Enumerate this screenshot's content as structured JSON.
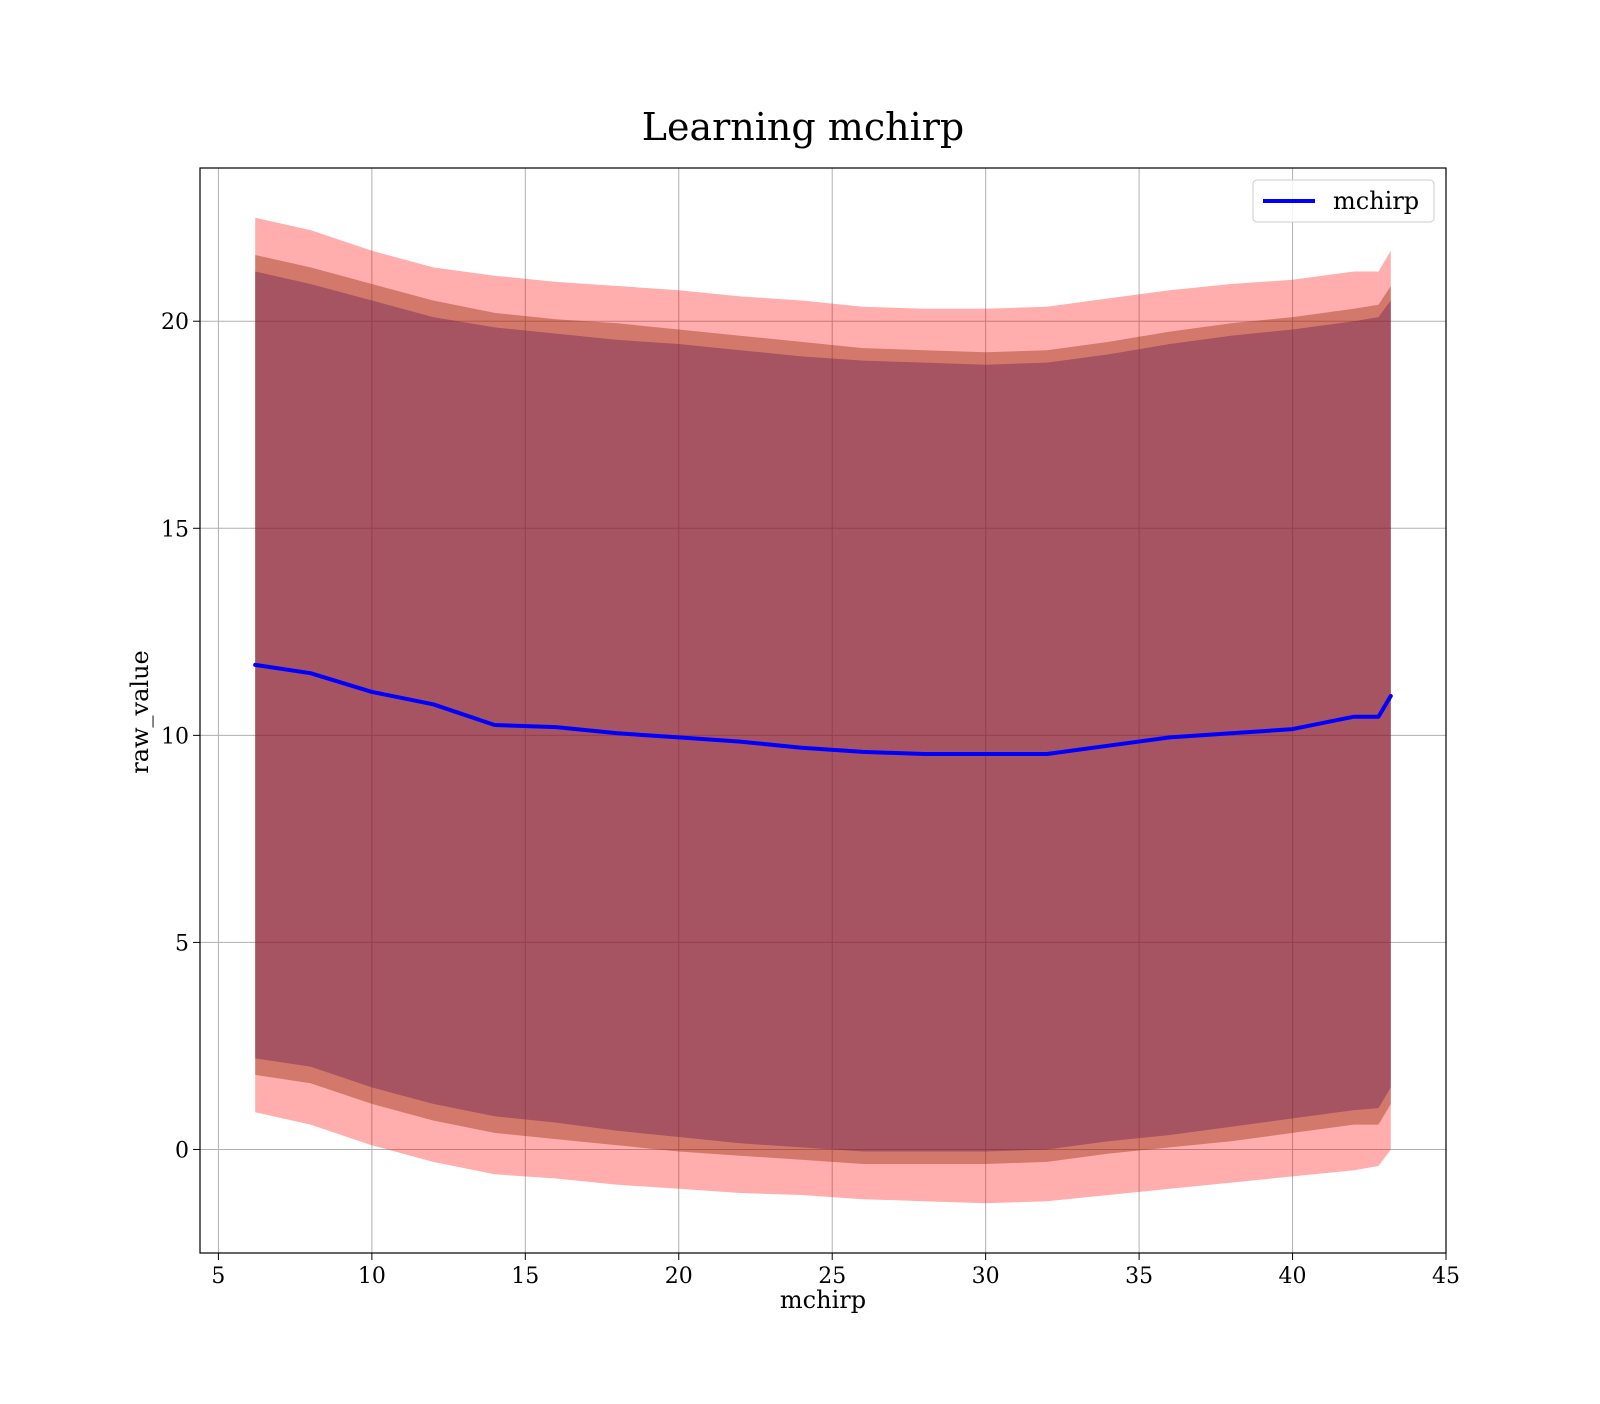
{
  "chart_data": {
    "type": "line",
    "title": "Learning mchirp",
    "xlabel": "mchirp",
    "ylabel": "raw_value",
    "xlim": [
      4.4,
      45
    ],
    "ylim": [
      -2.5,
      23.7
    ],
    "xticks": [
      5,
      10,
      15,
      20,
      25,
      30,
      35,
      40,
      45
    ],
    "yticks": [
      0,
      5,
      10,
      15,
      20
    ],
    "grid": true,
    "legend_position": "top-right",
    "x": [
      6.2,
      8,
      10,
      12,
      14,
      16,
      18,
      20,
      22,
      24,
      26,
      28,
      30,
      32,
      34,
      36,
      38,
      40,
      42,
      42.8,
      43.2
    ],
    "series": [
      {
        "name": "mchirp",
        "color": "#0000ff",
        "values": [
          11.7,
          11.5,
          11.05,
          10.75,
          10.25,
          10.2,
          10.05,
          9.95,
          9.85,
          9.7,
          9.6,
          9.55,
          9.55,
          9.55,
          9.75,
          9.95,
          10.05,
          10.15,
          10.45,
          10.45,
          10.95
        ]
      }
    ],
    "bands": [
      {
        "color": "#ff0000",
        "opacity": 0.32,
        "lower": [
          0.9,
          0.6,
          0.1,
          -0.3,
          -0.6,
          -0.7,
          -0.85,
          -0.95,
          -1.05,
          -1.1,
          -1.2,
          -1.25,
          -1.3,
          -1.25,
          -1.1,
          -0.95,
          -0.8,
          -0.65,
          -0.5,
          -0.4,
          0.0
        ],
        "upper": [
          22.5,
          22.2,
          21.7,
          21.3,
          21.1,
          20.95,
          20.85,
          20.75,
          20.6,
          20.5,
          20.35,
          20.3,
          20.3,
          20.35,
          20.55,
          20.75,
          20.9,
          21.0,
          21.2,
          21.2,
          21.7
        ]
      },
      {
        "color": "#8b2500",
        "opacity": 0.38,
        "lower": [
          1.8,
          1.6,
          1.1,
          0.7,
          0.4,
          0.25,
          0.1,
          -0.05,
          -0.15,
          -0.25,
          -0.35,
          -0.35,
          -0.35,
          -0.3,
          -0.1,
          0.05,
          0.2,
          0.4,
          0.6,
          0.6,
          1.1
        ],
        "upper": [
          21.6,
          21.3,
          20.9,
          20.5,
          20.2,
          20.05,
          19.95,
          19.8,
          19.65,
          19.5,
          19.35,
          19.3,
          19.25,
          19.3,
          19.5,
          19.75,
          19.95,
          20.1,
          20.3,
          20.4,
          20.85
        ]
      },
      {
        "color": "#6a1e55",
        "opacity": 0.42,
        "lower": [
          2.2,
          2.0,
          1.5,
          1.1,
          0.8,
          0.65,
          0.45,
          0.3,
          0.15,
          0.05,
          -0.05,
          -0.05,
          -0.05,
          0.0,
          0.2,
          0.35,
          0.55,
          0.75,
          0.95,
          1.0,
          1.5
        ],
        "upper": [
          21.2,
          20.9,
          20.5,
          20.1,
          19.85,
          19.7,
          19.55,
          19.45,
          19.3,
          19.15,
          19.05,
          19.0,
          18.95,
          19.0,
          19.2,
          19.45,
          19.65,
          19.8,
          20.0,
          20.1,
          20.5
        ]
      }
    ]
  }
}
